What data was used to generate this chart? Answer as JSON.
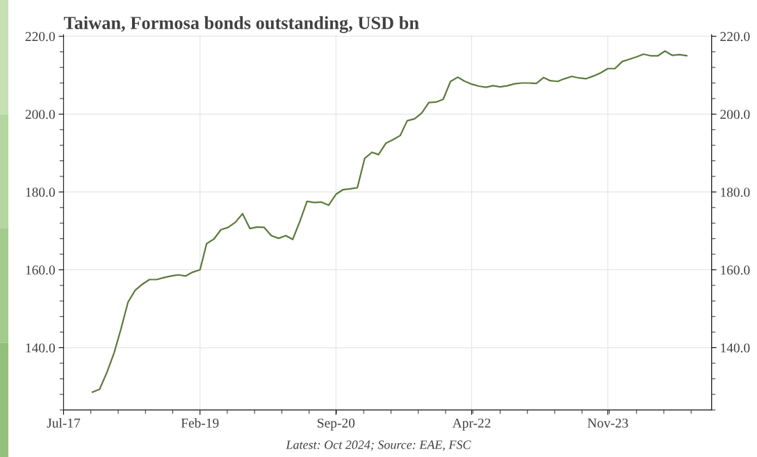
{
  "chart_data": {
    "type": "line",
    "title": "Taiwan, Formosa bonds outstanding, USD bn",
    "annotations": [
      "Latest: Oct 2024; Source: EAE, FSC"
    ],
    "x": [
      "2017-11",
      "2017-12",
      "2018-01",
      "2018-02",
      "2018-03",
      "2018-04",
      "2018-05",
      "2018-06",
      "2018-07",
      "2018-08",
      "2018-09",
      "2018-10",
      "2018-11",
      "2018-12",
      "2019-01",
      "2019-02",
      "2019-03",
      "2019-04",
      "2019-05",
      "2019-06",
      "2019-07",
      "2019-08",
      "2019-09",
      "2019-10",
      "2019-11",
      "2019-12",
      "2020-01",
      "2020-02",
      "2020-03",
      "2020-04",
      "2020-05",
      "2020-06",
      "2020-07",
      "2020-08",
      "2020-09",
      "2020-10",
      "2020-11",
      "2020-12",
      "2021-01",
      "2021-02",
      "2021-03",
      "2021-04",
      "2021-05",
      "2021-06",
      "2021-07",
      "2021-08",
      "2021-09",
      "2021-10",
      "2021-11",
      "2021-12",
      "2022-01",
      "2022-02",
      "2022-03",
      "2022-04",
      "2022-05",
      "2022-06",
      "2022-07",
      "2022-08",
      "2022-09",
      "2022-10",
      "2022-11",
      "2022-12",
      "2023-01",
      "2023-02",
      "2023-03",
      "2023-04",
      "2023-05",
      "2023-06",
      "2023-07",
      "2023-08",
      "2023-09",
      "2023-10",
      "2023-11",
      "2023-12",
      "2024-01",
      "2024-02",
      "2024-03",
      "2024-04",
      "2024-05",
      "2024-06",
      "2024-07",
      "2024-08",
      "2024-09",
      "2024-10"
    ],
    "series": [
      {
        "color": "#5a7a3a",
        "values": [
          128.6,
          129.3,
          133.6,
          138.7,
          144.6,
          151.7,
          154.7,
          156.3,
          157.5,
          157.5,
          158.0,
          158.4,
          158.7,
          158.4,
          159.4,
          160.0,
          166.7,
          167.9,
          170.3,
          170.9,
          172.2,
          174.4,
          170.6,
          171.0,
          170.9,
          168.8,
          168.1,
          168.8,
          167.8,
          172.5,
          177.6,
          177.3,
          177.4,
          176.6,
          179.4,
          180.6,
          180.8,
          181.1,
          188.6,
          190.2,
          189.6,
          192.5,
          193.4,
          194.5,
          198.3,
          198.8,
          200.3,
          203.0,
          203.1,
          203.8,
          208.4,
          209.5,
          208.5,
          207.7,
          207.2,
          206.9,
          207.3,
          207.0,
          207.3,
          207.8,
          208.0,
          208.0,
          207.9,
          209.4,
          208.6,
          208.4,
          209.1,
          209.7,
          209.3,
          209.1,
          209.8,
          210.6,
          211.7,
          211.7,
          213.5,
          214.1,
          214.7,
          215.4,
          215.0,
          215.0,
          216.2,
          215.1,
          215.3,
          215.0
        ]
      }
    ],
    "xlim": [
      "2017-07",
      "2025-01-15"
    ],
    "xticks": [
      {
        "value": "2017-07",
        "label": "Jul-17"
      },
      {
        "value": "2019-02",
        "label": "Feb-19"
      },
      {
        "value": "2020-09",
        "label": "Sep-20"
      },
      {
        "value": "2022-04",
        "label": "Apr-22"
      },
      {
        "value": "2023-11",
        "label": "Nov-23"
      }
    ],
    "ylim": [
      124,
      220.4
    ],
    "yticks": [
      {
        "value": 140,
        "label": "140.0"
      },
      {
        "value": 160,
        "label": "160.0"
      },
      {
        "value": 180,
        "label": "180.0"
      },
      {
        "value": 200,
        "label": "200.0"
      },
      {
        "value": 220,
        "label": "220.0"
      }
    ],
    "y2lim": [
      124,
      220.4
    ],
    "y2ticks": [
      {
        "value": 140,
        "label": "140.0"
      },
      {
        "value": 160,
        "label": "160.0"
      },
      {
        "value": 180,
        "label": "180.0"
      },
      {
        "value": 200,
        "label": "200.0"
      },
      {
        "value": 220,
        "label": "220.0"
      }
    ],
    "grid": true,
    "legend": false,
    "marker": "none",
    "line_style": "solid"
  }
}
